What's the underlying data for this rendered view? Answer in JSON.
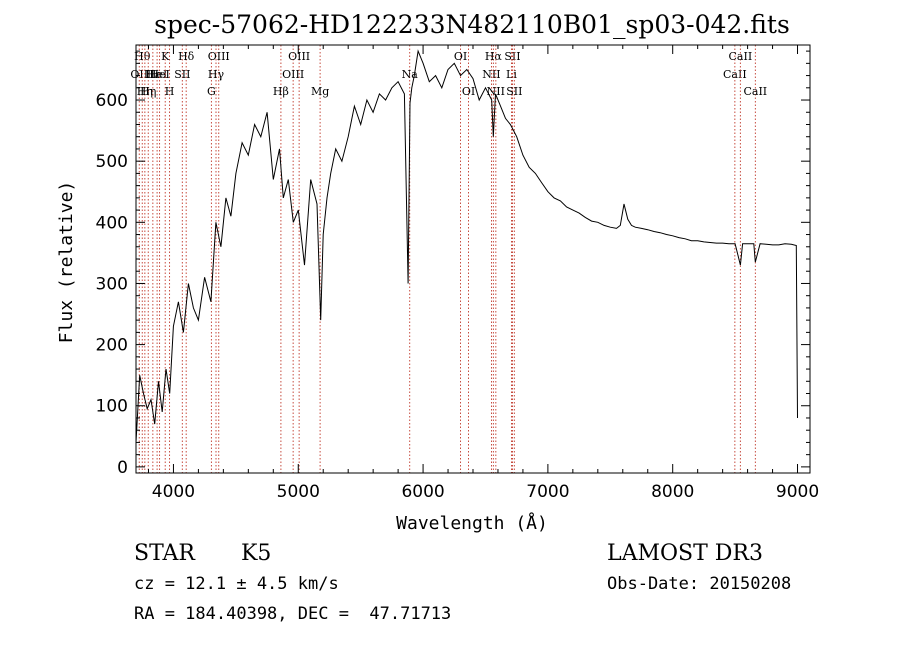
{
  "chart_data": {
    "type": "line",
    "title": "spec-57062-HD122233N482110B01_sp03-042.fits",
    "xlabel": "Wavelength (Å)",
    "ylabel": "Flux (relative)",
    "xlim": [
      3700,
      9100
    ],
    "ylim": [
      -10,
      690
    ],
    "x_ticks": [
      4000,
      5000,
      6000,
      7000,
      8000,
      9000
    ],
    "y_ticks": [
      0,
      100,
      200,
      300,
      400,
      500,
      600
    ],
    "grid": false,
    "line_color": "#000000",
    "marker_color": "#c0392b",
    "series": [
      {
        "x": [
          3700,
          3730,
          3760,
          3790,
          3820,
          3850,
          3880,
          3910,
          3940,
          3970,
          4000,
          4040,
          4080,
          4120,
          4160,
          4200,
          4250,
          4300,
          4340,
          4380,
          4420,
          4460,
          4500,
          4550,
          4600,
          4650,
          4700,
          4750,
          4800,
          4850,
          4880,
          4920,
          4960,
          5000,
          5050,
          5100,
          5150,
          5180,
          5200,
          5230,
          5260,
          5300,
          5350,
          5400,
          5450,
          5500,
          5550,
          5600,
          5650,
          5700,
          5750,
          5800,
          5850,
          5880,
          5895,
          5910,
          5930,
          5960,
          6000,
          6050,
          6100,
          6150,
          6200,
          6250,
          6300,
          6350,
          6400,
          6450,
          6500,
          6550,
          6563,
          6580,
          6620,
          6660,
          6700,
          6750,
          6800,
          6850,
          6900,
          6950,
          7000,
          7050,
          7100,
          7150,
          7200,
          7250,
          7300,
          7350,
          7400,
          7450,
          7500,
          7550,
          7580,
          7610,
          7640,
          7670,
          7700,
          7750,
          7800,
          7850,
          7900,
          7950,
          8000,
          8050,
          8100,
          8150,
          8200,
          8250,
          8300,
          8350,
          8400,
          8450,
          8500,
          8542,
          8560,
          8600,
          8650,
          8662,
          8700,
          8750,
          8800,
          8850,
          8900,
          8950,
          8990,
          9000
        ],
        "y": [
          40,
          150,
          120,
          95,
          110,
          70,
          140,
          90,
          160,
          120,
          230,
          270,
          220,
          300,
          260,
          240,
          310,
          270,
          400,
          360,
          440,
          410,
          480,
          530,
          510,
          560,
          540,
          580,
          470,
          520,
          440,
          470,
          400,
          420,
          330,
          470,
          430,
          240,
          380,
          440,
          480,
          520,
          500,
          540,
          590,
          560,
          600,
          580,
          610,
          600,
          620,
          630,
          610,
          300,
          595,
          620,
          640,
          680,
          660,
          630,
          640,
          620,
          650,
          660,
          640,
          650,
          635,
          600,
          620,
          600,
          540,
          610,
          590,
          570,
          560,
          540,
          510,
          490,
          480,
          465,
          450,
          440,
          435,
          425,
          420,
          415,
          408,
          402,
          400,
          395,
          392,
          390,
          395,
          430,
          405,
          395,
          392,
          390,
          388,
          385,
          383,
          380,
          378,
          375,
          373,
          370,
          370,
          368,
          367,
          366,
          366,
          365,
          365,
          330,
          365,
          365,
          365,
          335,
          365,
          364,
          363,
          363,
          365,
          364,
          362,
          80
        ]
      }
    ],
    "line_markers": [
      {
        "x": 3726,
        "label": "OII",
        "row": 1
      },
      {
        "x": 3750,
        "label": "Hθ",
        "row": 0
      },
      {
        "x": 3771,
        "label": "Hη",
        "row": 2
      },
      {
        "x": 3798,
        "label": "Hη",
        "row": 2
      },
      {
        "x": 3835,
        "label": "Hε",
        "row": 1
      },
      {
        "x": 3869,
        "label": "HeI",
        "row": 1
      },
      {
        "x": 3889,
        "label": "HeI",
        "row": 1
      },
      {
        "x": 3934,
        "label": "K",
        "row": 0
      },
      {
        "x": 3969,
        "label": "H",
        "row": 2
      },
      {
        "x": 4071,
        "label": "SII",
        "row": 1
      },
      {
        "x": 4102,
        "label": "Hδ",
        "row": 0
      },
      {
        "x": 4304,
        "label": "G",
        "row": 2
      },
      {
        "x": 4341,
        "label": "Hγ",
        "row": 1
      },
      {
        "x": 4363,
        "label": "OIII",
        "row": 0
      },
      {
        "x": 4861,
        "label": "Hβ",
        "row": 2
      },
      {
        "x": 4959,
        "label": "OIII",
        "row": 1
      },
      {
        "x": 5007,
        "label": "OIII",
        "row": 0
      },
      {
        "x": 5175,
        "label": "Mg",
        "row": 2
      },
      {
        "x": 5893,
        "label": "Na",
        "row": 1
      },
      {
        "x": 6300,
        "label": "OI",
        "row": 0
      },
      {
        "x": 6364,
        "label": "OI",
        "row": 2
      },
      {
        "x": 6548,
        "label": "NII",
        "row": 1
      },
      {
        "x": 6563,
        "label": "Hα",
        "row": 0
      },
      {
        "x": 6583,
        "label": "NII",
        "row": 2
      },
      {
        "x": 6708,
        "label": "Li",
        "row": 1
      },
      {
        "x": 6716,
        "label": "SII",
        "row": 0
      },
      {
        "x": 6731,
        "label": "SII",
        "row": 2
      },
      {
        "x": 8498,
        "label": "CaII",
        "row": 1
      },
      {
        "x": 8542,
        "label": "CaII",
        "row": 0
      },
      {
        "x": 8662,
        "label": "CaII",
        "row": 2
      }
    ]
  },
  "info": {
    "class_label": "STAR",
    "subclass": "K5",
    "survey": "LAMOST DR3",
    "cz": "cz = 12.1 ± 4.5 km/s",
    "obs_date": "Obs-Date: 20150208",
    "coords": "RA = 184.40398, DEC =  47.71713"
  }
}
